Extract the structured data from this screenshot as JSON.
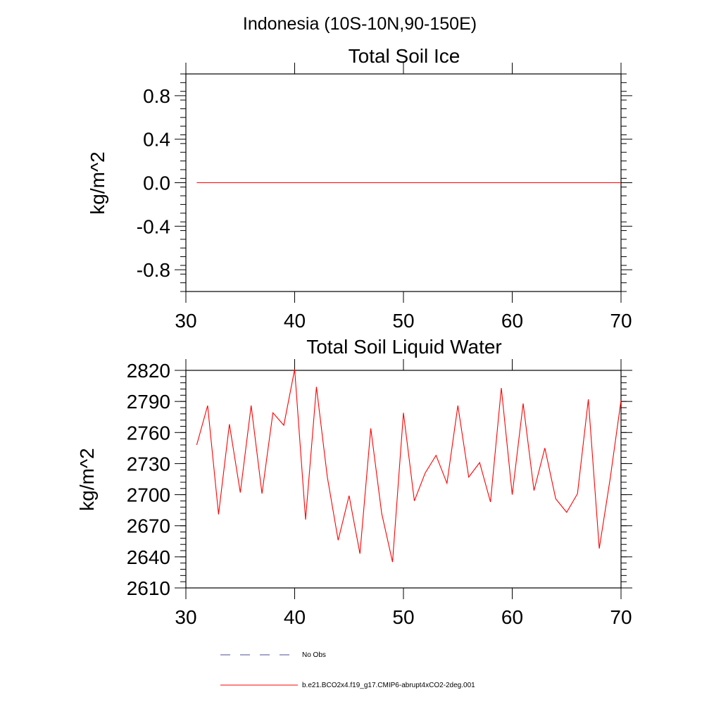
{
  "figure": {
    "region_title": "Indonesia (10S-10N,90-150E)"
  },
  "chart_data": [
    {
      "type": "line",
      "title": "Total Soil Ice",
      "ylabel": "kg/m^2",
      "xlabel": "",
      "xlim": [
        30,
        70
      ],
      "ylim": [
        -1.0,
        1.0
      ],
      "xticks": [
        30,
        40,
        50,
        60,
        70
      ],
      "yticks": [
        -0.8,
        -0.4,
        0.0,
        0.4,
        0.8
      ],
      "yticklabels": [
        "-0.8",
        "-0.4",
        "0.0",
        "0.4",
        "0.8"
      ],
      "series": [
        {
          "name": "b.e21.BCO2x4.f19_g17.CMIP6-abrupt4xCO2-2deg.001",
          "color": "#ff0000",
          "x": [
            31,
            32,
            33,
            34,
            35,
            36,
            37,
            38,
            39,
            40,
            41,
            42,
            43,
            44,
            45,
            46,
            47,
            48,
            49,
            50,
            51,
            52,
            53,
            54,
            55,
            56,
            57,
            58,
            59,
            60,
            61,
            62,
            63,
            64,
            65,
            66,
            67,
            68,
            69,
            70
          ],
          "values": [
            0,
            0,
            0,
            0,
            0,
            0,
            0,
            0,
            0,
            0,
            0,
            0,
            0,
            0,
            0,
            0,
            0,
            0,
            0,
            0,
            0,
            0,
            0,
            0,
            0,
            0,
            0,
            0,
            0,
            0,
            0,
            0,
            0,
            0,
            0,
            0,
            0,
            0,
            0,
            0
          ]
        }
      ]
    },
    {
      "type": "line",
      "title": "Total Soil Liquid Water",
      "ylabel": "kg/m^2",
      "xlabel": "",
      "xlim": [
        30,
        70
      ],
      "ylim": [
        2610,
        2820
      ],
      "xticks": [
        30,
        40,
        50,
        60,
        70
      ],
      "yticks": [
        2610,
        2640,
        2670,
        2700,
        2730,
        2760,
        2790,
        2820
      ],
      "yticklabels": [
        "2610",
        "2640",
        "2670",
        "2700",
        "2730",
        "2760",
        "2790",
        "2820"
      ],
      "series": [
        {
          "name": "b.e21.BCO2x4.f19_g17.CMIP6-abrupt4xCO2-2deg.001",
          "color": "#ff0000",
          "x": [
            31,
            32,
            33,
            34,
            35,
            36,
            37,
            38,
            39,
            40,
            41,
            42,
            43,
            44,
            45,
            46,
            47,
            48,
            49,
            50,
            51,
            52,
            53,
            54,
            55,
            56,
            57,
            58,
            59,
            60,
            61,
            62,
            63,
            64,
            65,
            66,
            67,
            68,
            69,
            70
          ],
          "values": [
            2748,
            2786,
            2681,
            2768,
            2702,
            2786,
            2701,
            2779,
            2767,
            2821,
            2676,
            2804,
            2717,
            2656,
            2699,
            2643,
            2764,
            2682,
            2635,
            2779,
            2694,
            2721,
            2738,
            2711,
            2786,
            2717,
            2731,
            2693,
            2803,
            2700,
            2788,
            2704,
            2745,
            2696,
            2683,
            2701,
            2792,
            2648,
            2715,
            2791
          ]
        }
      ]
    }
  ],
  "legend": {
    "placement": "bottom-left",
    "items": [
      {
        "label": "No Obs",
        "color": "#4b4b9b",
        "style": "dashed"
      },
      {
        "label": "b.e21.BCO2x4.f19_g17.CMIP6-abrupt4xCO2-2deg.001",
        "color": "#ff0000",
        "style": "solid"
      }
    ]
  }
}
